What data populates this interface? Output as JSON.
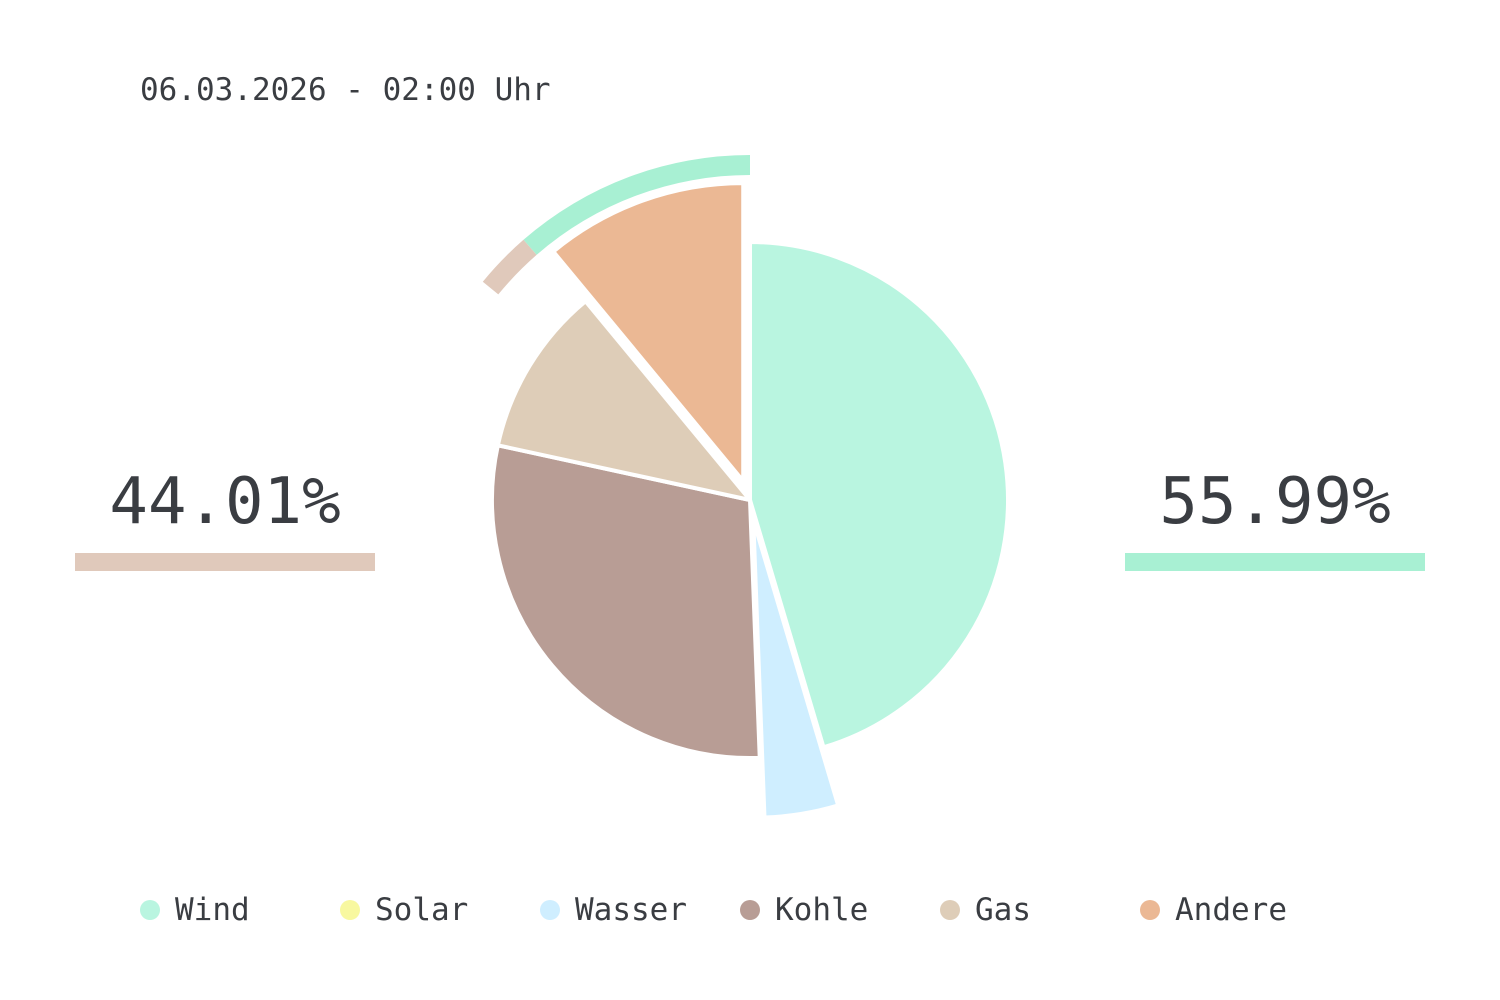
{
  "timestamp": "06.03.2026 - 02:00 Uhr",
  "shares": {
    "conventional": {
      "text": "44.01%",
      "value": 44.01,
      "color": "#e0c9bb"
    },
    "renewable": {
      "text": "55.99%",
      "value": 55.99,
      "color": "#a8f0d3"
    }
  },
  "chart_data": {
    "type": "pie",
    "title": "",
    "unit": "%",
    "start_angle": "12 o'clock",
    "direction": "clockwise",
    "slices": [
      {
        "name": "Wind",
        "value": 45.4,
        "color": "#b9f5e0",
        "exploded": false
      },
      {
        "name": "Solar",
        "value": 0,
        "color": "#f8f8a0",
        "exploded": false
      },
      {
        "name": "Wasser",
        "value": 4.0,
        "color": "#cfeeff",
        "exploded": true
      },
      {
        "name": "Kohle",
        "value": 29.0,
        "color": "#b89d95",
        "exploded": false
      },
      {
        "name": "Gas",
        "value": 10.6,
        "color": "#decdb8",
        "exploded": false
      },
      {
        "name": "Andere",
        "value": 11.0,
        "color": "#ebb894",
        "exploded": true
      }
    ],
    "outer_arcs": [
      {
        "name": "renewable",
        "start": 88.6,
        "end": 100,
        "color": "#a8f0d3"
      },
      {
        "name": "conventional",
        "start": 85.9,
        "end": 88.6,
        "color": "#e0c9bb"
      }
    ],
    "legend": {
      "position": "bottom",
      "items": [
        "Wind",
        "Solar",
        "Wasser",
        "Kohle",
        "Gas",
        "Andere"
      ]
    }
  }
}
